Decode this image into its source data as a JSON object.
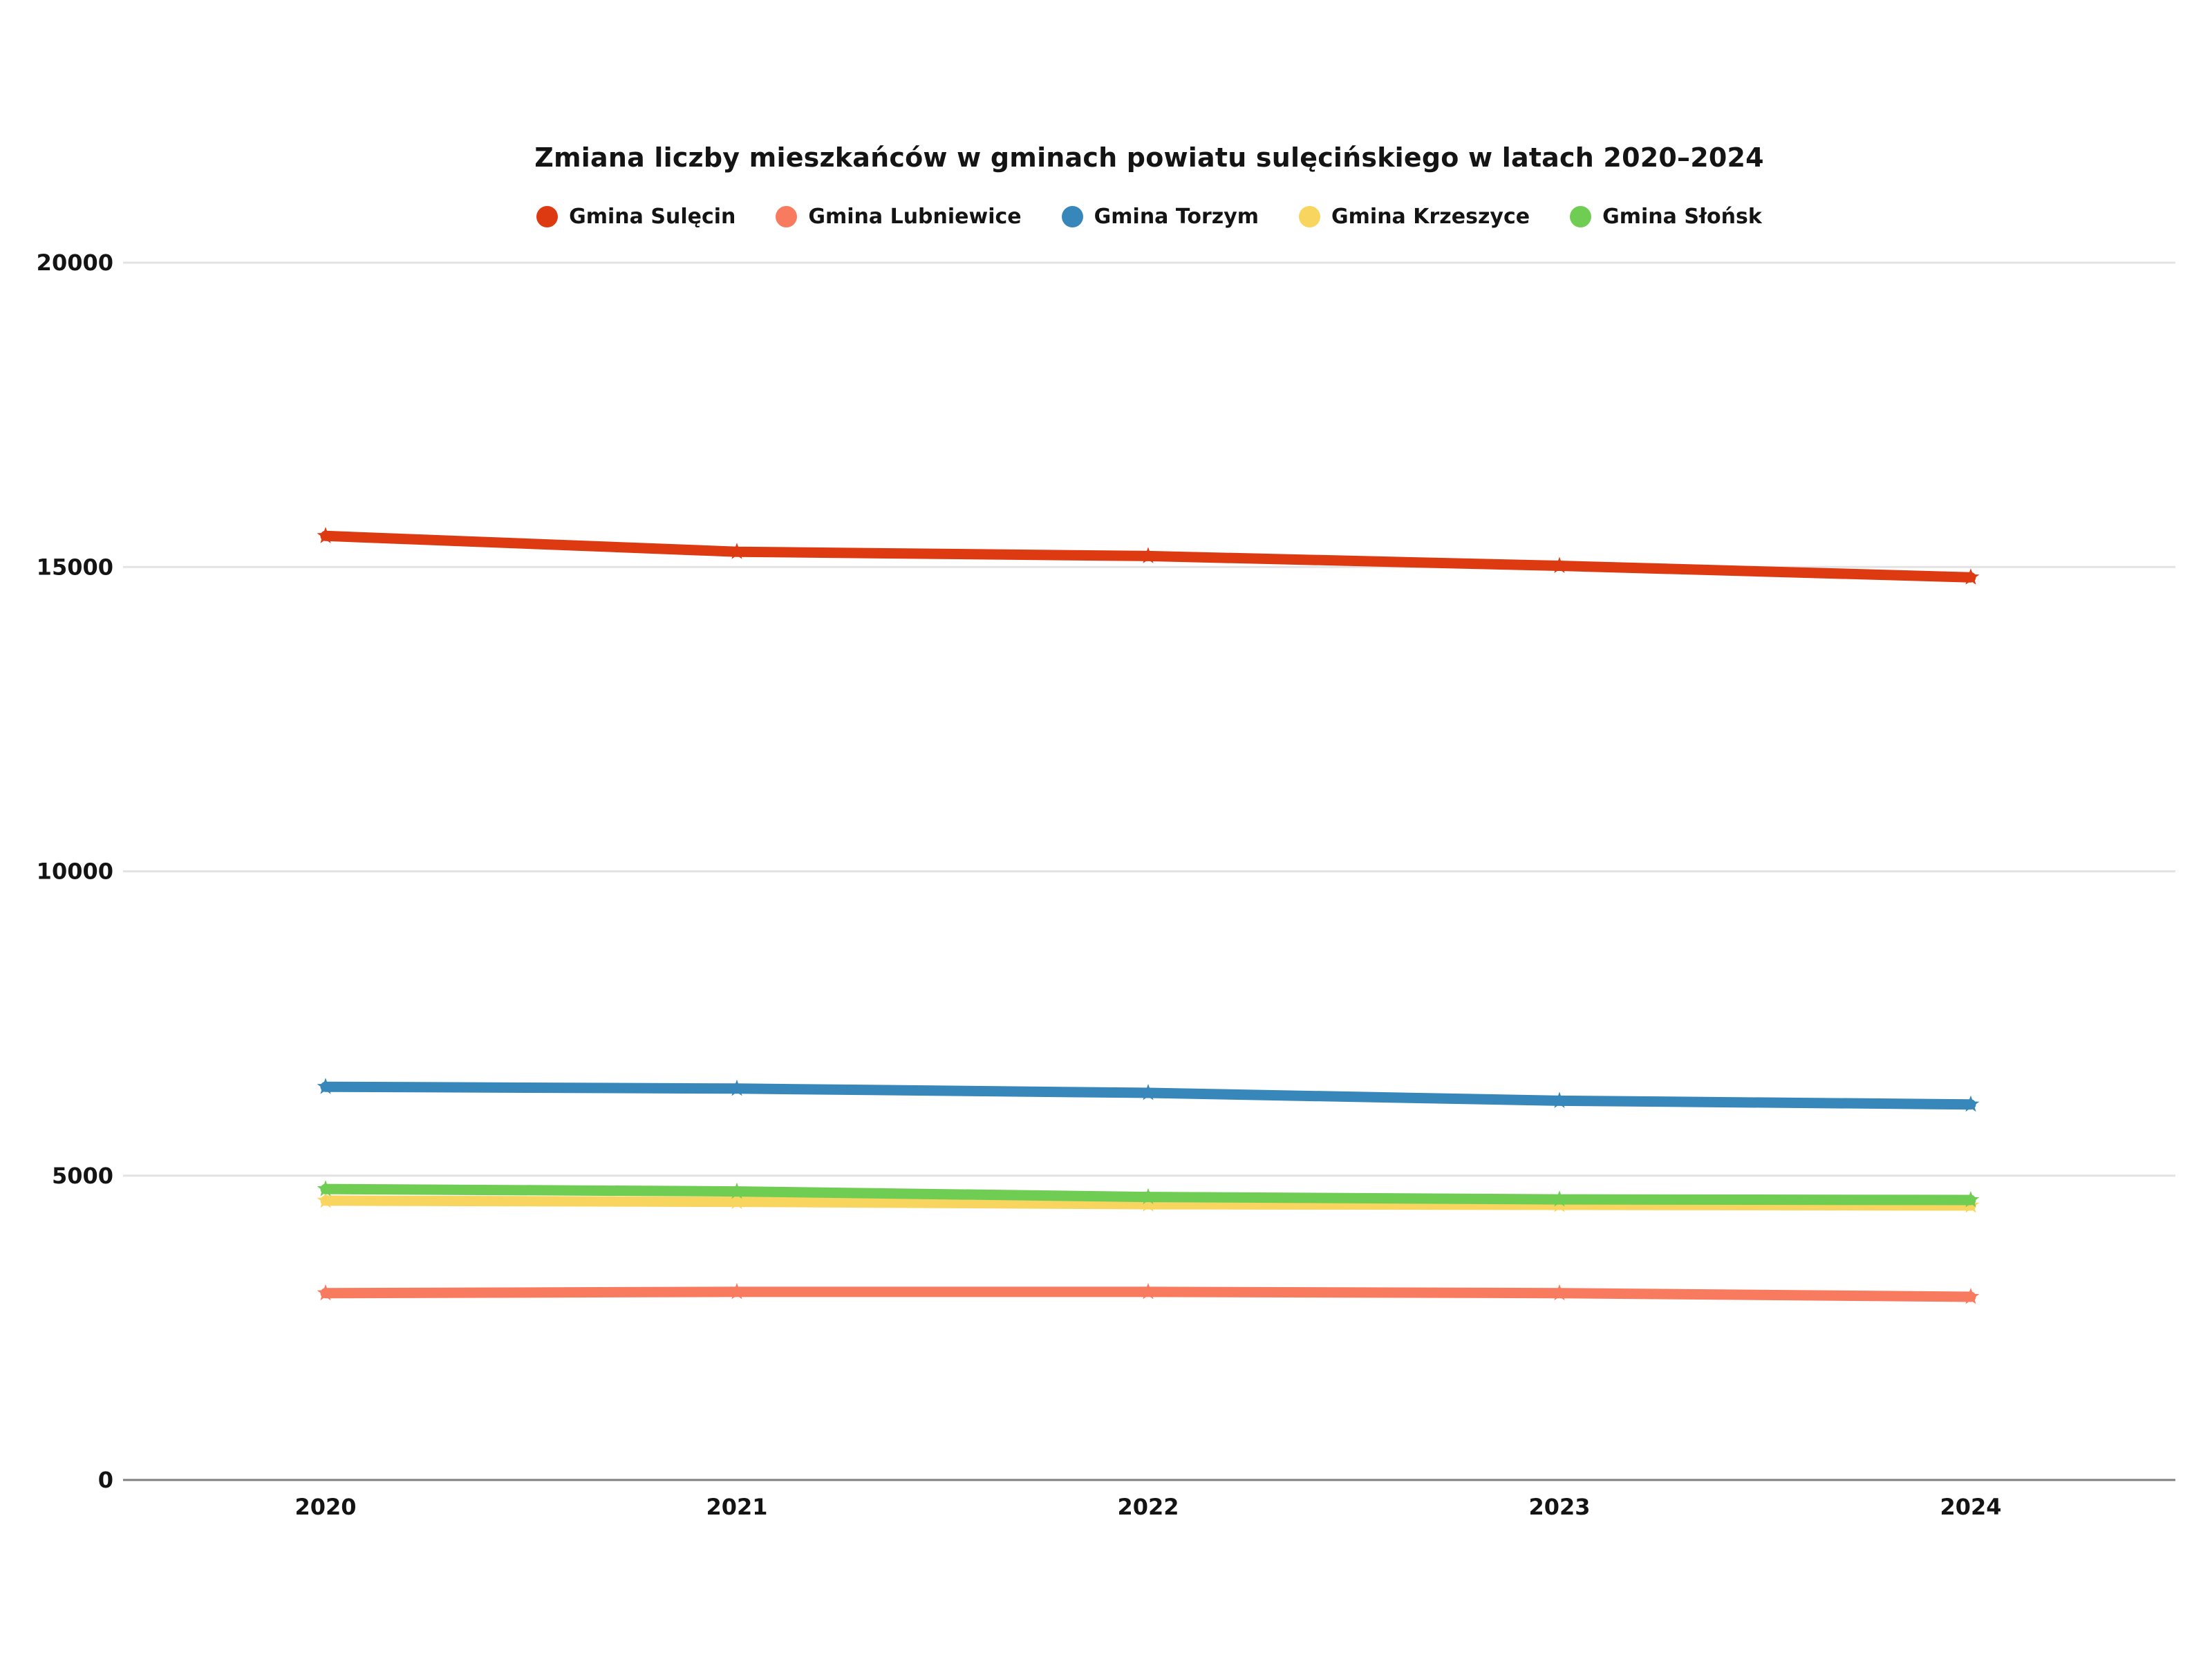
{
  "chart_data": {
    "type": "line",
    "title": "Zmiana liczby mieszkańców w gminach powiatu sulęcińskiego w latach 2020–2024",
    "categories": [
      "2020",
      "2021",
      "2022",
      "2023",
      "2024"
    ],
    "series": [
      {
        "name": "Gmina Sulęcin",
        "color": "#DE3A12",
        "values": [
          15510,
          15250,
          15180,
          15020,
          14830
        ]
      },
      {
        "name": "Gmina Lubniewice",
        "color": "#F97B5F",
        "values": [
          3070,
          3090,
          3090,
          3070,
          3010
        ]
      },
      {
        "name": "Gmina Torzym",
        "color": "#3787BA",
        "values": [
          6460,
          6430,
          6360,
          6230,
          6170
        ]
      },
      {
        "name": "Gmina Krzeszyce",
        "color": "#F8D55F",
        "values": [
          4590,
          4570,
          4530,
          4520,
          4510
        ]
      },
      {
        "name": "Gmina Słońsk",
        "color": "#70CD54",
        "values": [
          4780,
          4740,
          4650,
          4610,
          4600
        ]
      }
    ],
    "ylim": [
      0,
      20000
    ],
    "yticks": [
      0,
      5000,
      10000,
      15000,
      20000
    ],
    "grid": true,
    "legend_position": "top",
    "marker": "star",
    "colors": {
      "background": "#ffffff",
      "gridline": "#e3e3e3",
      "zero_axis": "#7f7f7f",
      "text": "#141414"
    }
  }
}
